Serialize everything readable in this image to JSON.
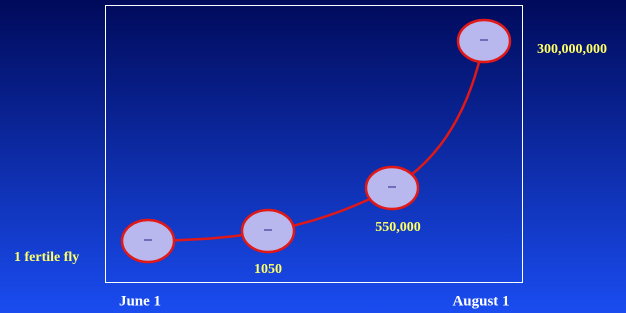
{
  "nodes": [
    {
      "label": "1 fertile fly"
    },
    {
      "label": "1050"
    },
    {
      "label": "550,000"
    },
    {
      "label": "300,000,000"
    }
  ],
  "x_labels": [
    "June 1",
    "August 1"
  ]
}
